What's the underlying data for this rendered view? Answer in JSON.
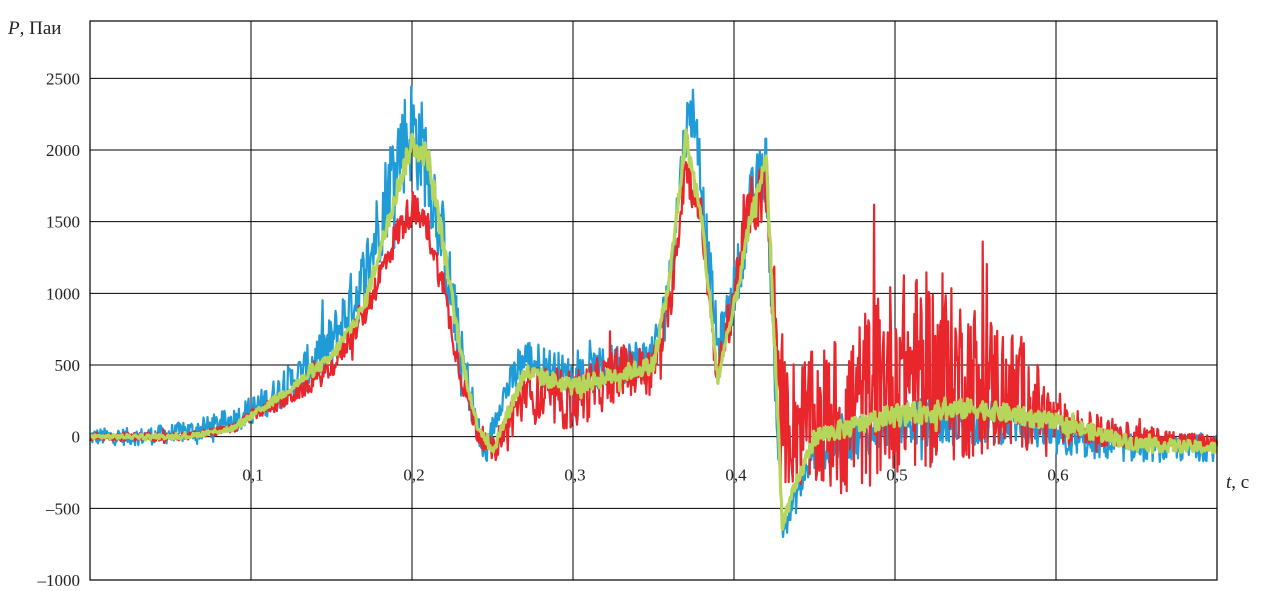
{
  "chart_data": {
    "type": "line",
    "ylabel_var": "P",
    "ylabel_unit": ", Паи",
    "xlabel_var": "t",
    "xlabel_unit": ", c",
    "xlim": [
      0.0,
      0.7
    ],
    "ylim": [
      -1000,
      2900
    ],
    "x_ticks": [
      {
        "value": 0.1,
        "label": "0,1"
      },
      {
        "value": 0.2,
        "label": "0,2"
      },
      {
        "value": 0.3,
        "label": "0,3"
      },
      {
        "value": 0.4,
        "label": "0,4"
      },
      {
        "value": 0.5,
        "label": "0,5"
      },
      {
        "value": 0.6,
        "label": "0,6"
      }
    ],
    "y_ticks": [
      {
        "value": 2500,
        "label": "2500"
      },
      {
        "value": 2000,
        "label": "2000"
      },
      {
        "value": 1500,
        "label": "1500"
      },
      {
        "value": 1000,
        "label": "1000"
      },
      {
        "value": 500,
        "label": "500"
      },
      {
        "value": 0,
        "label": "0"
      },
      {
        "value": -500,
        "label": "–500"
      },
      {
        "value": -1000,
        "label": "–1000"
      }
    ],
    "grid": true,
    "series": [
      {
        "color": "#1f9bd7",
        "x": [
          0.0,
          0.03,
          0.05,
          0.07,
          0.09,
          0.11,
          0.13,
          0.15,
          0.17,
          0.18,
          0.19,
          0.2,
          0.21,
          0.22,
          0.23,
          0.24,
          0.245,
          0.255,
          0.27,
          0.3,
          0.33,
          0.35,
          0.36,
          0.37,
          0.375,
          0.38,
          0.39,
          0.4,
          0.41,
          0.42,
          0.425,
          0.43,
          0.45,
          0.5,
          0.55,
          0.58,
          0.6,
          0.65,
          0.7
        ],
        "y": [
          0,
          0,
          20,
          50,
          120,
          250,
          420,
          650,
          1100,
          1500,
          1950,
          2150,
          1900,
          1300,
          600,
          100,
          -150,
          250,
          550,
          400,
          520,
          550,
          1100,
          2150,
          2300,
          1700,
          600,
          1000,
          1600,
          1900,
          500,
          -650,
          -100,
          100,
          100,
          100,
          -20,
          -80,
          -80
        ],
        "noise": [
          60,
          60,
          70,
          80,
          90,
          110,
          150,
          200,
          250,
          300,
          350,
          380,
          350,
          300,
          200,
          120,
          100,
          100,
          150,
          150,
          150,
          150,
          150,
          200,
          200,
          200,
          180,
          200,
          250,
          250,
          150,
          100,
          150,
          170,
          160,
          150,
          120,
          100,
          90
        ]
      },
      {
        "color": "#e8262c",
        "x": [
          0.0,
          0.06,
          0.09,
          0.1,
          0.12,
          0.135,
          0.15,
          0.17,
          0.19,
          0.2,
          0.21,
          0.22,
          0.23,
          0.24,
          0.25,
          0.27,
          0.3,
          0.33,
          0.35,
          0.36,
          0.37,
          0.38,
          0.39,
          0.4,
          0.41,
          0.42,
          0.43,
          0.45,
          0.47,
          0.5,
          0.52,
          0.55,
          0.58,
          0.6,
          0.65,
          0.7
        ],
        "y": [
          0,
          0,
          60,
          150,
          250,
          350,
          480,
          850,
          1400,
          1600,
          1450,
          1000,
          450,
          50,
          -100,
          300,
          250,
          450,
          480,
          900,
          1900,
          1500,
          400,
          1000,
          1600,
          1700,
          100,
          100,
          150,
          450,
          450,
          400,
          300,
          100,
          0,
          -50
        ],
        "noise": [
          30,
          30,
          30,
          40,
          60,
          60,
          80,
          100,
          120,
          120,
          120,
          100,
          100,
          80,
          80,
          200,
          220,
          180,
          150,
          150,
          150,
          150,
          150,
          180,
          200,
          250,
          450,
          500,
          600,
          700,
          700,
          550,
          400,
          150,
          80,
          60
        ]
      },
      {
        "color": "#b5d65a",
        "x": [
          0.0,
          0.06,
          0.09,
          0.12,
          0.15,
          0.17,
          0.19,
          0.2,
          0.21,
          0.22,
          0.23,
          0.24,
          0.25,
          0.27,
          0.3,
          0.35,
          0.36,
          0.37,
          0.38,
          0.39,
          0.4,
          0.41,
          0.42,
          0.425,
          0.43,
          0.45,
          0.5,
          0.55,
          0.6,
          0.65,
          0.7
        ],
        "y": [
          0,
          0,
          60,
          300,
          550,
          900,
          1700,
          2050,
          1950,
          1300,
          600,
          100,
          -100,
          450,
          350,
          500,
          1100,
          2100,
          1500,
          400,
          900,
          1500,
          1950,
          700,
          -600,
          0,
          150,
          200,
          100,
          -50,
          -80
        ],
        "noise": [
          15,
          15,
          20,
          30,
          40,
          50,
          70,
          90,
          90,
          70,
          50,
          40,
          40,
          60,
          60,
          60,
          60,
          70,
          70,
          60,
          60,
          60,
          60,
          60,
          50,
          60,
          80,
          70,
          60,
          50,
          40
        ]
      }
    ]
  }
}
